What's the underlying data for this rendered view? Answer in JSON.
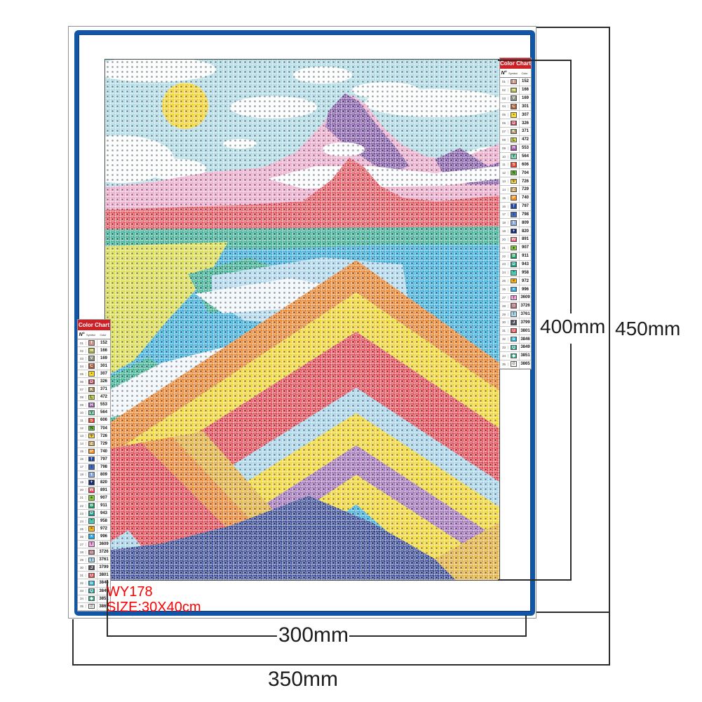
{
  "product": {
    "code": "WY178",
    "size": "SIZE:30X40cm"
  },
  "dimensions": {
    "canvas_width": "300mm",
    "canvas_height": "400mm",
    "sheet_width": "350mm",
    "sheet_height": "450mm"
  },
  "color_chart": {
    "title": "Color Chart",
    "columns": {
      "no": "N°",
      "symbol": "Symbol",
      "color": "Color"
    },
    "rows": [
      {
        "no": "01",
        "symbol": "T",
        "code": "152",
        "chip": "#cf9284",
        "symbol_color": "#ffffff"
      },
      {
        "no": "02",
        "symbol": "⇒",
        "code": "166",
        "chip": "#aeb33c",
        "symbol_color": "#ffffff"
      },
      {
        "no": "03",
        "symbol": "V",
        "code": "169",
        "chip": "#8a8f83",
        "symbol_color": "#ffffff"
      },
      {
        "no": "04",
        "symbol": "C",
        "code": "301",
        "chip": "#b05a33",
        "symbol_color": "#ffffff"
      },
      {
        "no": "05",
        "symbol": "▪",
        "code": "307",
        "chip": "#fada24",
        "symbol_color": "#454510"
      },
      {
        "no": "06",
        "symbol": "D",
        "code": "326",
        "chip": "#c63c52",
        "symbol_color": "#ffffff"
      },
      {
        "no": "07",
        "symbol": "K",
        "code": "371",
        "chip": "#a08c50",
        "symbol_color": "#ffffff"
      },
      {
        "no": "08",
        "symbol": "L",
        "code": "472",
        "chip": "#c8d455",
        "symbol_color": "#4a4a10"
      },
      {
        "no": "09",
        "symbol": "H",
        "code": "553",
        "chip": "#9a50a8",
        "symbol_color": "#ffffff"
      },
      {
        "no": "10",
        "symbol": "Y",
        "code": "564",
        "chip": "#7ed4b4",
        "symbol_color": "#1e5e46"
      },
      {
        "no": "11",
        "symbol": "S",
        "code": "606",
        "chip": "#f23c1a",
        "symbol_color": "#ffffff"
      },
      {
        "no": "12",
        "symbol": "N",
        "code": "704",
        "chip": "#6cc43c",
        "symbol_color": "#1f4d12"
      },
      {
        "no": "13",
        "symbol": "Ψ",
        "code": "726",
        "chip": "#fcd84a",
        "symbol_color": "#6a5a10"
      },
      {
        "no": "14",
        "symbol": "Z",
        "code": "729",
        "chip": "#c8a050",
        "symbol_color": "#ffffff"
      },
      {
        "no": "15",
        "symbol": "P",
        "code": "740",
        "chip": "#fc8c14",
        "symbol_color": "#ffffff"
      },
      {
        "no": "16",
        "symbol": "†",
        "code": "797",
        "chip": "#1e4aa8",
        "symbol_color": "#ffffff"
      },
      {
        "no": "17",
        "symbol": "\\",
        "code": "798",
        "chip": "#3c68c0",
        "symbol_color": "#0e2f73"
      },
      {
        "no": "18",
        "symbol": "t",
        "code": "809",
        "chip": "#88a8e0",
        "symbol_color": "#ffffff"
      },
      {
        "no": "19",
        "symbol": "+",
        "code": "820",
        "chip": "#142a78",
        "symbol_color": "#ffffff"
      },
      {
        "no": "20",
        "symbol": "W",
        "code": "891",
        "chip": "#f04858",
        "symbol_color": "#ffffff"
      },
      {
        "no": "21",
        "symbol": "♠",
        "code": "907",
        "chip": "#84cc34",
        "symbol_color": "#2a4a0a"
      },
      {
        "no": "22",
        "symbol": "B",
        "code": "911",
        "chip": "#1a9a5c",
        "symbol_color": "#ffffff"
      },
      {
        "no": "23",
        "symbol": "D",
        "code": "943",
        "chip": "#18a088",
        "symbol_color": "#ffffff"
      },
      {
        "no": "24",
        "symbol": "*",
        "code": "958",
        "chip": "#48c8b0",
        "symbol_color": "#0a5a4a"
      },
      {
        "no": "25",
        "symbol": "×",
        "code": "972",
        "chip": "#fcb810",
        "symbol_color": "#5a4400"
      },
      {
        "no": "26",
        "symbol": "×",
        "code": "996",
        "chip": "#28a8e0",
        "symbol_color": "#ffffff"
      },
      {
        "no": "27",
        "symbol": "Ŧ",
        "code": "3609",
        "chip": "#f0a8e0",
        "symbol_color": "#8a3a78"
      },
      {
        "no": "28",
        "symbol": "◘",
        "code": "3726",
        "chip": "#b06878",
        "symbol_color": "#ffffff"
      },
      {
        "no": "29",
        "symbol": "I",
        "code": "3761",
        "chip": "#a8d4ec",
        "symbol_color": "#3a6a8a"
      },
      {
        "no": "30",
        "symbol": "J",
        "code": "3799",
        "chip": "#50505a",
        "symbol_color": "#ffffff"
      },
      {
        "no": "31",
        "symbol": "U",
        "code": "3801",
        "chip": "#e84444",
        "symbol_color": "#ffffff"
      },
      {
        "no": "32",
        "symbol": "b",
        "code": "3846",
        "chip": "#20b4dc",
        "symbol_color": "#ffffff"
      },
      {
        "no": "33",
        "symbol": "Q",
        "code": "3849",
        "chip": "#28a090",
        "symbol_color": "#ffffff"
      },
      {
        "no": "34",
        "symbol": "◆",
        "code": "3851",
        "chip": "#30b088",
        "symbol_color": "#ffffff"
      },
      {
        "no": "35",
        "symbol": "⊘",
        "code": "3865",
        "chip": "#f8f6f0",
        "symbol_color": "#999999"
      }
    ]
  },
  "artwork": {
    "layers": [
      {
        "name": "sky",
        "color": "#a9d9e3"
      },
      {
        "name": "cloud",
        "color": "#fbfdfd"
      },
      {
        "name": "sun",
        "color": "#f4d01c"
      },
      {
        "name": "pink-mountain",
        "color": "#eda6c8"
      },
      {
        "name": "purple-ridge",
        "color": "#7b50a2"
      },
      {
        "name": "snow-band",
        "color": "#fafcfd"
      },
      {
        "name": "red-band",
        "color": "#e84b55"
      },
      {
        "name": "teal-strip",
        "color": "#2fa98c"
      },
      {
        "name": "cyan-field",
        "color": "#2fa9d9"
      },
      {
        "name": "chartreuse-field",
        "color": "#d8da3e"
      },
      {
        "name": "green-patch",
        "color": "#2ca889"
      },
      {
        "name": "pale-blue-patch",
        "color": "#abd7ee"
      },
      {
        "name": "white-sweep",
        "color": "#eff6fa"
      },
      {
        "name": "orange-chevron",
        "color": "#ec7c1e"
      },
      {
        "name": "yellow-chevron",
        "color": "#f3d31f"
      },
      {
        "name": "red-chevron",
        "color": "#e73b46"
      },
      {
        "name": "skyblue-chevron",
        "color": "#a0d1e9"
      },
      {
        "name": "purple-chevron",
        "color": "#9b69b3"
      },
      {
        "name": "gold-stripe",
        "color": "#e0aa2c"
      },
      {
        "name": "navy-base",
        "color": "#293d8e"
      }
    ]
  }
}
